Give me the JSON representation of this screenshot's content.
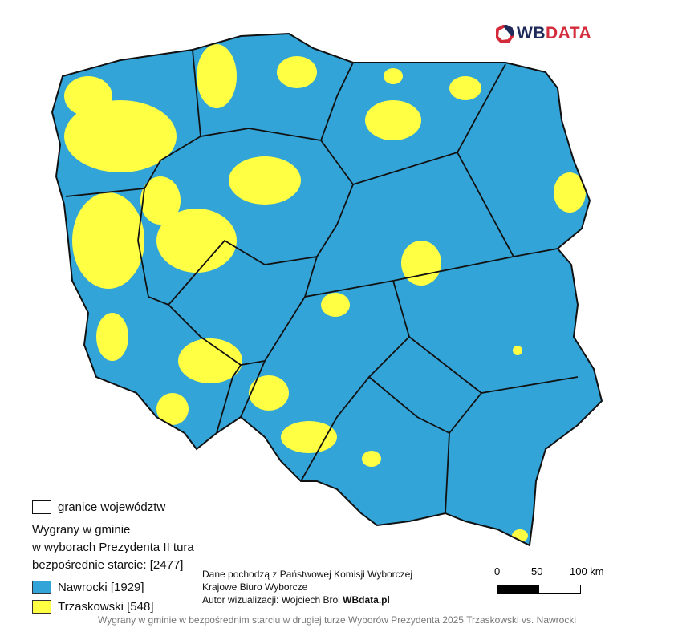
{
  "logo": {
    "text_wb": "WB",
    "text_data": "DATA"
  },
  "legend": {
    "boundary_label": "granice województw",
    "title_lines": [
      "Wygrany w gminie",
      "w wyborach Prezydenta II tura",
      "bezpośrednie starcie: [2477]"
    ],
    "items": [
      {
        "label": "Nawrocki [1929]",
        "color": "#33a4d8"
      },
      {
        "label": "Trzaskowski [548]",
        "color": "#ffff44"
      }
    ]
  },
  "credits": {
    "line1": "Dane pochodzą z Państwowej Komisji Wyborczej",
    "line2": "Krajowe Biuro Wyborcze",
    "line3_prefix": "Autor wizualizacji: Wojciech Brol ",
    "line3_bold": "WBdata.pl"
  },
  "scale": {
    "ticks": [
      "0",
      "50",
      "100 km"
    ]
  },
  "caption": "Wygrany w gminie w bezpośrednim starciu w drugiej turze Wyborów Prezydenta 2025 Trzaskowski vs. Nawrocki"
}
